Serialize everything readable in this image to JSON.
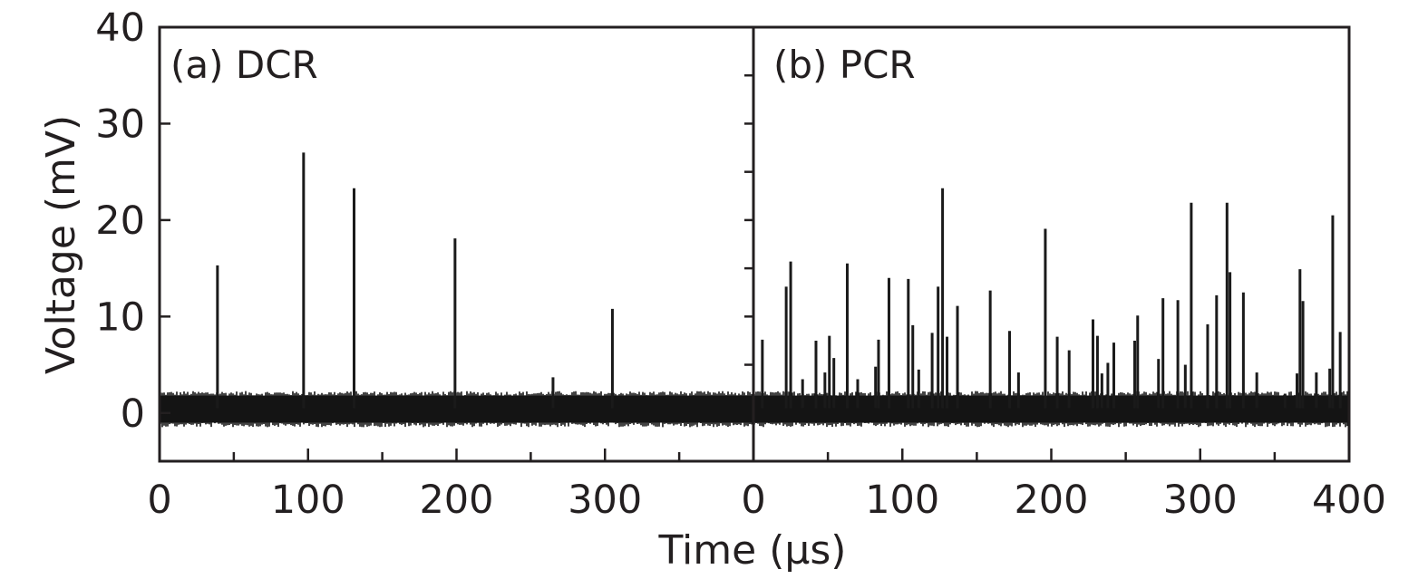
{
  "chart_data": {
    "type": "line",
    "ylabel": "Voltage (mV)",
    "xlabel": "Time (μs)",
    "ylim": [
      -5,
      40
    ],
    "yticks": [
      "0",
      "10",
      "20",
      "30",
      "40"
    ],
    "grid": false,
    "panels": [
      {
        "label": "(a) DCR",
        "xlim": [
          0,
          400
        ],
        "xticks": [
          "0",
          "100",
          "200",
          "300"
        ],
        "baseline_band": [
          -1,
          1.8
        ],
        "spikes": [
          {
            "x": 39,
            "y": 15.3
          },
          {
            "x": 97,
            "y": 27.0
          },
          {
            "x": 131,
            "y": 23.3
          },
          {
            "x": 199,
            "y": 18.1
          },
          {
            "x": 265,
            "y": 3.7
          },
          {
            "x": 305,
            "y": 10.8
          }
        ]
      },
      {
        "label": "(b) PCR",
        "xlim": [
          0,
          400
        ],
        "xticks": [
          "0",
          "100",
          "200",
          "300",
          "400"
        ],
        "baseline_band": [
          -1,
          1.8
        ],
        "spikes": [
          {
            "x": 6,
            "y": 7.6
          },
          {
            "x": 22,
            "y": 13.1
          },
          {
            "x": 25,
            "y": 15.7
          },
          {
            "x": 33,
            "y": 3.5
          },
          {
            "x": 42,
            "y": 7.5
          },
          {
            "x": 48,
            "y": 4.2
          },
          {
            "x": 51,
            "y": 8.0
          },
          {
            "x": 54,
            "y": 5.7
          },
          {
            "x": 63,
            "y": 15.5
          },
          {
            "x": 70,
            "y": 3.5
          },
          {
            "x": 82,
            "y": 4.8
          },
          {
            "x": 84,
            "y": 7.6
          },
          {
            "x": 91,
            "y": 14.0
          },
          {
            "x": 104,
            "y": 13.9
          },
          {
            "x": 107,
            "y": 9.1
          },
          {
            "x": 111,
            "y": 4.5
          },
          {
            "x": 120,
            "y": 8.3
          },
          {
            "x": 124,
            "y": 13.1
          },
          {
            "x": 127,
            "y": 23.3
          },
          {
            "x": 130,
            "y": 7.9
          },
          {
            "x": 137,
            "y": 11.1
          },
          {
            "x": 159,
            "y": 12.7
          },
          {
            "x": 172,
            "y": 8.5
          },
          {
            "x": 178,
            "y": 4.2
          },
          {
            "x": 196,
            "y": 19.1
          },
          {
            "x": 204,
            "y": 7.9
          },
          {
            "x": 212,
            "y": 6.5
          },
          {
            "x": 228,
            "y": 9.7
          },
          {
            "x": 231,
            "y": 8.0
          },
          {
            "x": 234,
            "y": 4.1
          },
          {
            "x": 238,
            "y": 5.2
          },
          {
            "x": 242,
            "y": 7.3
          },
          {
            "x": 256,
            "y": 7.5
          },
          {
            "x": 258,
            "y": 10.1
          },
          {
            "x": 272,
            "y": 5.6
          },
          {
            "x": 275,
            "y": 11.9
          },
          {
            "x": 285,
            "y": 11.7
          },
          {
            "x": 290,
            "y": 5.0
          },
          {
            "x": 294,
            "y": 21.8
          },
          {
            "x": 305,
            "y": 9.2
          },
          {
            "x": 311,
            "y": 12.2
          },
          {
            "x": 318,
            "y": 21.8
          },
          {
            "x": 320,
            "y": 14.6
          },
          {
            "x": 329,
            "y": 12.5
          },
          {
            "x": 338,
            "y": 4.2
          },
          {
            "x": 357,
            "y": 2.0
          },
          {
            "x": 365,
            "y": 4.1
          },
          {
            "x": 367,
            "y": 14.9
          },
          {
            "x": 369,
            "y": 11.6
          },
          {
            "x": 378,
            "y": 4.2
          },
          {
            "x": 387,
            "y": 4.6
          },
          {
            "x": 389,
            "y": 20.5
          },
          {
            "x": 394,
            "y": 8.4
          }
        ]
      }
    ]
  }
}
